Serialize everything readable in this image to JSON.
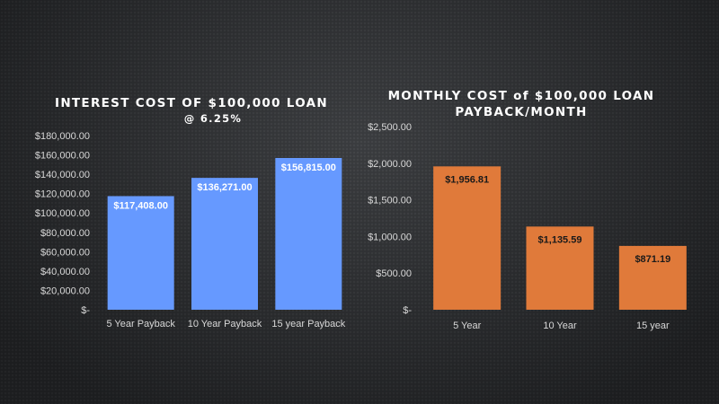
{
  "chart_data": [
    {
      "type": "bar",
      "title": "INTEREST  COST OF $100,000 LOAN",
      "subtitle": "@ 6.25%",
      "categories": [
        "5 Year Payback",
        "10 Year Payback",
        "15 year Payback"
      ],
      "values": [
        117408.0,
        136271.0,
        156815.0
      ],
      "data_labels": [
        "$117,408.00",
        "$136,271.00",
        "$156,815.00"
      ],
      "ylim": [
        0,
        180000
      ],
      "yticks": [
        0,
        20000,
        40000,
        60000,
        80000,
        100000,
        120000,
        140000,
        160000,
        180000
      ],
      "ytick_labels": [
        "$-",
        "$20,000.00",
        "$40,000.00",
        "$60,000.00",
        "$80,000.00",
        "$100,000.00",
        "$120,000.00",
        "$140,000.00",
        "$160,000.00",
        "$180,000.00"
      ],
      "bar_color": "#6699ff",
      "label_color": "#ffffff",
      "grid": false,
      "legend": "none"
    },
    {
      "type": "bar",
      "title": "MONTHLY COST of $100,000 LOAN",
      "subtitle": "PAYBACK/MONTH",
      "categories": [
        "5 Year",
        "10 Year",
        "15 year"
      ],
      "values": [
        1956.81,
        1135.59,
        871.19
      ],
      "data_labels": [
        "$1,956.81",
        "$1,135.59",
        "$871.19"
      ],
      "ylim": [
        0,
        2500
      ],
      "yticks": [
        0,
        500,
        1000,
        1500,
        2000,
        2500
      ],
      "ytick_labels": [
        "$-",
        "$500.00",
        "$1,000.00",
        "$1,500.00",
        "$2,000.00",
        "$2,500.00"
      ],
      "bar_color": "#e07a3a",
      "label_color": "#1a1a1a",
      "grid": false,
      "legend": "none"
    }
  ]
}
